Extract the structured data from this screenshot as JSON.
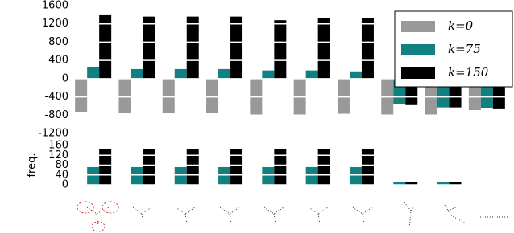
{
  "chart_data": [
    {
      "type": "bar",
      "categories": [
        null,
        null,
        null,
        null,
        null,
        null,
        null,
        null,
        null,
        null
      ],
      "series": [
        {
          "name": "k=0",
          "color": "#999999",
          "values": [
            -740,
            -760,
            -760,
            -760,
            -810,
            -810,
            -770,
            -790,
            -810,
            -690
          ]
        },
        {
          "name": "k=75",
          "color": "#108080",
          "values": [
            250,
            210,
            210,
            210,
            180,
            180,
            160,
            -550,
            -630,
            -650
          ]
        },
        {
          "name": "k=150",
          "color": "#000000",
          "values": [
            1390,
            1360,
            1360,
            1360,
            1280,
            1320,
            1320,
            -580,
            -630,
            -670
          ]
        }
      ],
      "ylim": [
        -1200,
        1600
      ],
      "yticks": [
        -1200,
        -800,
        -400,
        0,
        400,
        800,
        1200,
        1600
      ],
      "grid": true,
      "grid_color": "#ffffff",
      "legend": "upper right"
    },
    {
      "type": "bar",
      "ylabel": "freq.",
      "categories": [
        null,
        null,
        null,
        null,
        null,
        null,
        null,
        null,
        null,
        null
      ],
      "series": [
        {
          "color": "#108080",
          "values": [
            72,
            72,
            72,
            72,
            72,
            72,
            72,
            13,
            10,
            0
          ]
        },
        {
          "color": "#000000",
          "values": [
            145,
            145,
            145,
            145,
            145,
            145,
            145,
            10,
            10,
            0
          ]
        }
      ],
      "ylim": [
        0,
        160
      ],
      "yticks": [
        0,
        40,
        80,
        120,
        160
      ],
      "grid": true,
      "grid_color": "#ffffff"
    }
  ]
}
